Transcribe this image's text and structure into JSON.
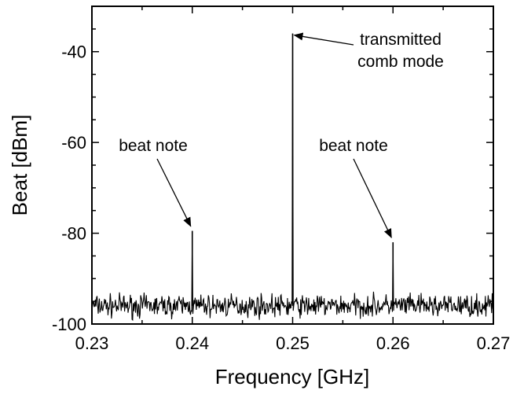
{
  "chart_data": {
    "type": "line",
    "title": "",
    "xlabel": "Frequency [GHz]",
    "ylabel": "Beat [dBm]",
    "xlim": [
      0.23,
      0.27
    ],
    "ylim": [
      -100,
      -30
    ],
    "xticks": [
      0.23,
      0.24,
      0.25,
      0.26,
      0.27
    ],
    "xtick_labels": [
      "0.23",
      "0.24",
      "0.25",
      "0.26",
      "0.27"
    ],
    "yticks": [
      -100,
      -80,
      -60,
      -40
    ],
    "ytick_labels": [
      "-100",
      "-80",
      "-60",
      "-40"
    ],
    "grid": false,
    "legend": "none",
    "noise_floor_dbm": -96,
    "peaks": [
      {
        "x": 0.24,
        "y": -79.5
      },
      {
        "x": 0.25,
        "y": -36
      },
      {
        "x": 0.26,
        "y": -82
      }
    ],
    "annotations": [
      {
        "lines": [
          "transmitted",
          "comb mode"
        ],
        "points_to": {
          "x": 0.25,
          "y": -36
        }
      },
      {
        "lines": [
          "beat note"
        ],
        "points_to": {
          "x": 0.24,
          "y": -79.5
        }
      },
      {
        "lines": [
          "beat note"
        ],
        "points_to": {
          "x": 0.26,
          "y": -82
        }
      }
    ]
  }
}
